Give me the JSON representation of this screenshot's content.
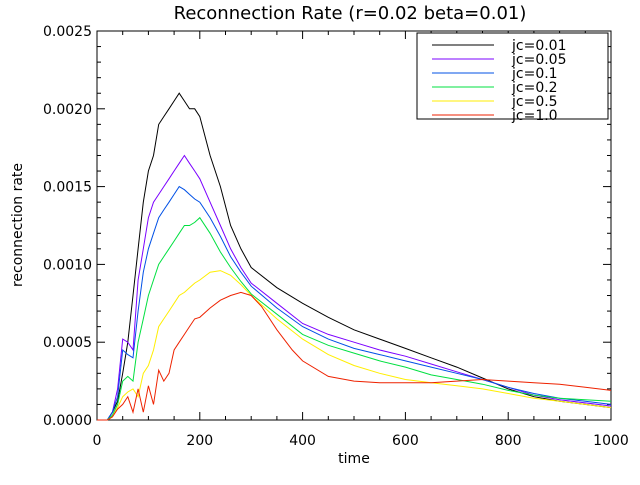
{
  "chart_data": {
    "type": "line",
    "title": "Reconnection Rate (r=0.02 beta=0.01)",
    "xlabel": "time",
    "ylabel": "reconnection rate",
    "xlim": [
      0,
      1000
    ],
    "ylim": [
      0,
      0.0025
    ],
    "x_ticks": [
      "0",
      "200",
      "400",
      "600",
      "800",
      "1000"
    ],
    "y_ticks": [
      "0.0000",
      "0.0005",
      "0.0010",
      "0.0015",
      "0.0020",
      "0.0025"
    ],
    "grid": false,
    "legend_position": "top-right",
    "series": [
      {
        "name": "jc=0.01",
        "color": "#000000",
        "points": [
          [
            0,
            0
          ],
          [
            20,
            0
          ],
          [
            30,
            5e-05
          ],
          [
            40,
            0.00012
          ],
          [
            50,
            0.0003
          ],
          [
            60,
            0.0005
          ],
          [
            70,
            0.0008
          ],
          [
            80,
            0.0011
          ],
          [
            90,
            0.0014
          ],
          [
            100,
            0.0016
          ],
          [
            110,
            0.0017
          ],
          [
            120,
            0.0019
          ],
          [
            130,
            0.00195
          ],
          [
            140,
            0.002
          ],
          [
            150,
            0.00205
          ],
          [
            160,
            0.0021
          ],
          [
            170,
            0.00205
          ],
          [
            180,
            0.002
          ],
          [
            190,
            0.002
          ],
          [
            200,
            0.00195
          ],
          [
            220,
            0.0017
          ],
          [
            240,
            0.0015
          ],
          [
            260,
            0.00125
          ],
          [
            280,
            0.0011
          ],
          [
            300,
            0.00098
          ],
          [
            350,
            0.00085
          ],
          [
            400,
            0.00075
          ],
          [
            450,
            0.00066
          ],
          [
            500,
            0.00058
          ],
          [
            550,
            0.00052
          ],
          [
            600,
            0.00046
          ],
          [
            650,
            0.0004
          ],
          [
            700,
            0.00034
          ],
          [
            750,
            0.00027
          ],
          [
            800,
            0.0002
          ],
          [
            850,
            0.00015
          ],
          [
            900,
            0.00012
          ],
          [
            950,
            0.0001
          ],
          [
            1000,
            8e-05
          ]
        ]
      },
      {
        "name": "jc=0.05",
        "color": "#7b00ff",
        "points": [
          [
            0,
            0
          ],
          [
            20,
            0
          ],
          [
            30,
            5e-05
          ],
          [
            40,
            0.0002
          ],
          [
            50,
            0.00052
          ],
          [
            60,
            0.0005
          ],
          [
            70,
            0.00045
          ],
          [
            80,
            0.0009
          ],
          [
            90,
            0.0011
          ],
          [
            100,
            0.0013
          ],
          [
            110,
            0.0014
          ],
          [
            120,
            0.00145
          ],
          [
            130,
            0.0015
          ],
          [
            140,
            0.00155
          ],
          [
            150,
            0.0016
          ],
          [
            160,
            0.00165
          ],
          [
            170,
            0.0017
          ],
          [
            180,
            0.00165
          ],
          [
            190,
            0.0016
          ],
          [
            200,
            0.00155
          ],
          [
            220,
            0.0014
          ],
          [
            240,
            0.00125
          ],
          [
            260,
            0.0011
          ],
          [
            280,
            0.00098
          ],
          [
            300,
            0.00088
          ],
          [
            350,
            0.00075
          ],
          [
            400,
            0.00062
          ],
          [
            450,
            0.00055
          ],
          [
            500,
            0.0005
          ],
          [
            550,
            0.00045
          ],
          [
            600,
            0.00041
          ],
          [
            650,
            0.00036
          ],
          [
            700,
            0.00031
          ],
          [
            750,
            0.00026
          ],
          [
            800,
            0.00021
          ],
          [
            850,
            0.00016
          ],
          [
            900,
            0.00013
          ],
          [
            950,
            0.00011
          ],
          [
            1000,
            9e-05
          ]
        ]
      },
      {
        "name": "jc=0.1",
        "color": "#0050e6",
        "points": [
          [
            0,
            0
          ],
          [
            20,
            0
          ],
          [
            30,
            5e-05
          ],
          [
            40,
            0.00015
          ],
          [
            50,
            0.00045
          ],
          [
            60,
            0.00042
          ],
          [
            70,
            0.0004
          ],
          [
            80,
            0.0007
          ],
          [
            90,
            0.00095
          ],
          [
            100,
            0.0011
          ],
          [
            110,
            0.0012
          ],
          [
            120,
            0.0013
          ],
          [
            130,
            0.00135
          ],
          [
            140,
            0.0014
          ],
          [
            150,
            0.00145
          ],
          [
            160,
            0.0015
          ],
          [
            170,
            0.00148
          ],
          [
            180,
            0.00145
          ],
          [
            190,
            0.00142
          ],
          [
            200,
            0.0014
          ],
          [
            220,
            0.0013
          ],
          [
            240,
            0.00118
          ],
          [
            260,
            0.00105
          ],
          [
            280,
            0.00095
          ],
          [
            300,
            0.00086
          ],
          [
            350,
            0.00072
          ],
          [
            400,
            0.0006
          ],
          [
            450,
            0.00052
          ],
          [
            500,
            0.00046
          ],
          [
            550,
            0.00042
          ],
          [
            600,
            0.00038
          ],
          [
            650,
            0.00034
          ],
          [
            700,
            0.0003
          ],
          [
            750,
            0.00026
          ],
          [
            800,
            0.00021
          ],
          [
            850,
            0.00017
          ],
          [
            900,
            0.00014
          ],
          [
            950,
            0.00012
          ],
          [
            1000,
            0.0001
          ]
        ]
      },
      {
        "name": "jc=0.2",
        "color": "#00e040",
        "points": [
          [
            0,
            0
          ],
          [
            20,
            0
          ],
          [
            30,
            3e-05
          ],
          [
            40,
            0.0001
          ],
          [
            50,
            0.00025
          ],
          [
            60,
            0.00028
          ],
          [
            70,
            0.00025
          ],
          [
            80,
            0.0005
          ],
          [
            90,
            0.00065
          ],
          [
            100,
            0.0008
          ],
          [
            110,
            0.0009
          ],
          [
            120,
            0.001
          ],
          [
            130,
            0.00105
          ],
          [
            140,
            0.0011
          ],
          [
            150,
            0.00115
          ],
          [
            160,
            0.0012
          ],
          [
            170,
            0.00125
          ],
          [
            180,
            0.00125
          ],
          [
            190,
            0.00127
          ],
          [
            200,
            0.0013
          ],
          [
            220,
            0.0012
          ],
          [
            240,
            0.00108
          ],
          [
            260,
            0.00098
          ],
          [
            280,
            0.00089
          ],
          [
            300,
            0.00081
          ],
          [
            350,
            0.00068
          ],
          [
            400,
            0.00055
          ],
          [
            450,
            0.00048
          ],
          [
            500,
            0.00043
          ],
          [
            550,
            0.00038
          ],
          [
            600,
            0.00034
          ],
          [
            650,
            0.00029
          ],
          [
            700,
            0.00026
          ],
          [
            750,
            0.00023
          ],
          [
            800,
            0.00019
          ],
          [
            850,
            0.00016
          ],
          [
            900,
            0.00014
          ],
          [
            950,
            0.00013
          ],
          [
            1000,
            0.00012
          ]
        ]
      },
      {
        "name": "jc=0.5",
        "color": "#ffee00",
        "points": [
          [
            0,
            0
          ],
          [
            20,
            0
          ],
          [
            30,
            2e-05
          ],
          [
            40,
            8e-05
          ],
          [
            50,
            0.00015
          ],
          [
            60,
            0.00018
          ],
          [
            70,
            0.0002
          ],
          [
            80,
            0.00015
          ],
          [
            90,
            0.0003
          ],
          [
            100,
            0.00035
          ],
          [
            110,
            0.00045
          ],
          [
            120,
            0.0006
          ],
          [
            130,
            0.00065
          ],
          [
            140,
            0.0007
          ],
          [
            150,
            0.00075
          ],
          [
            160,
            0.0008
          ],
          [
            170,
            0.00082
          ],
          [
            180,
            0.00085
          ],
          [
            190,
            0.00088
          ],
          [
            200,
            0.0009
          ],
          [
            220,
            0.00095
          ],
          [
            240,
            0.00096
          ],
          [
            260,
            0.00093
          ],
          [
            280,
            0.00087
          ],
          [
            300,
            0.0008
          ],
          [
            350,
            0.00065
          ],
          [
            400,
            0.00052
          ],
          [
            450,
            0.00042
          ],
          [
            500,
            0.00035
          ],
          [
            550,
            0.0003
          ],
          [
            600,
            0.00026
          ],
          [
            650,
            0.00024
          ],
          [
            700,
            0.00022
          ],
          [
            750,
            0.0002
          ],
          [
            800,
            0.00017
          ],
          [
            850,
            0.00014
          ],
          [
            900,
            0.00012
          ],
          [
            950,
            0.0001
          ],
          [
            1000,
            8e-05
          ]
        ]
      },
      {
        "name": "jc=1.0",
        "color": "#ee2200",
        "points": [
          [
            0,
            0
          ],
          [
            20,
            0
          ],
          [
            30,
            2e-05
          ],
          [
            40,
            7e-05
          ],
          [
            50,
            0.0001
          ],
          [
            60,
            0.00015
          ],
          [
            70,
            5e-05
          ],
          [
            80,
            0.0002
          ],
          [
            90,
            5e-05
          ],
          [
            100,
            0.00022
          ],
          [
            110,
            0.0001
          ],
          [
            120,
            0.00032
          ],
          [
            130,
            0.00025
          ],
          [
            140,
            0.0003
          ],
          [
            150,
            0.00045
          ],
          [
            160,
            0.0005
          ],
          [
            170,
            0.00055
          ],
          [
            180,
            0.0006
          ],
          [
            190,
            0.00065
          ],
          [
            200,
            0.00066
          ],
          [
            220,
            0.00072
          ],
          [
            240,
            0.00077
          ],
          [
            260,
            0.0008
          ],
          [
            280,
            0.00082
          ],
          [
            300,
            0.0008
          ],
          [
            320,
            0.00073
          ],
          [
            350,
            0.00058
          ],
          [
            380,
            0.00045
          ],
          [
            400,
            0.00038
          ],
          [
            450,
            0.00028
          ],
          [
            500,
            0.00025
          ],
          [
            550,
            0.00024
          ],
          [
            600,
            0.00024
          ],
          [
            650,
            0.00024
          ],
          [
            700,
            0.00025
          ],
          [
            750,
            0.00026
          ],
          [
            800,
            0.00025
          ],
          [
            850,
            0.00024
          ],
          [
            900,
            0.00023
          ],
          [
            950,
            0.00021
          ],
          [
            1000,
            0.00019
          ]
        ]
      }
    ]
  }
}
